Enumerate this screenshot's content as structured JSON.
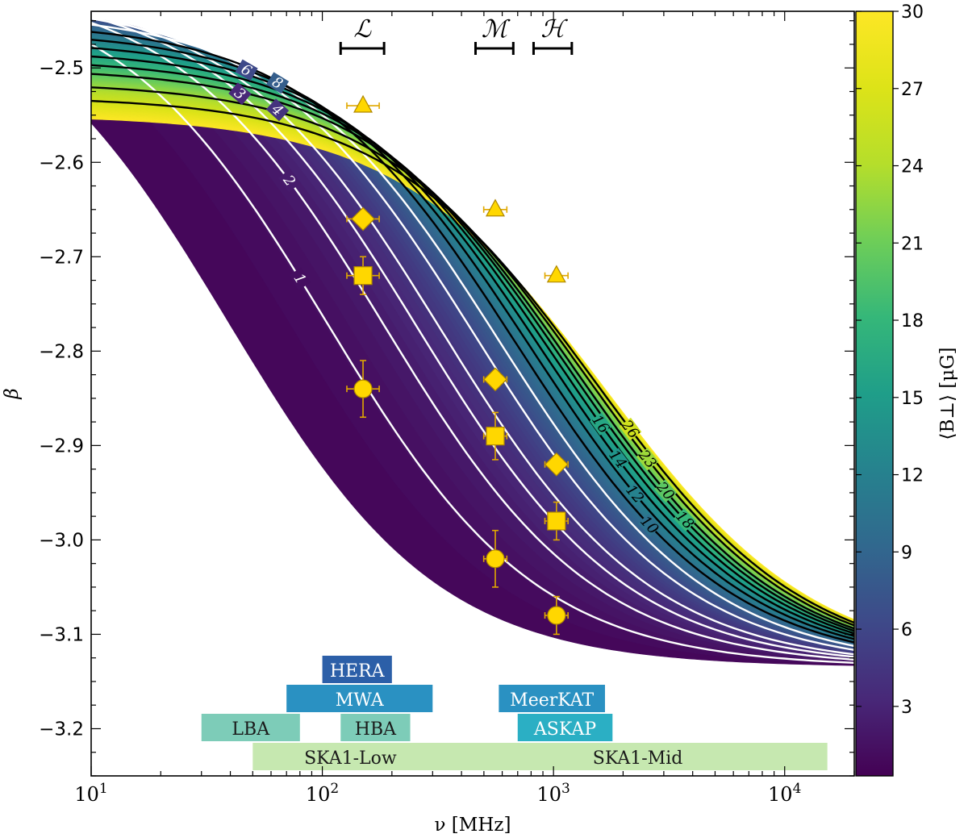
{
  "chart_data": {
    "type": "line",
    "title": "",
    "xlabel": "ν [MHz]",
    "ylabel": "β",
    "xscale": "log",
    "xlim": [
      10,
      20000
    ],
    "ylim": [
      -3.25,
      -2.44
    ],
    "x_ticks": [
      {
        "value": 10,
        "base": "10",
        "exp": "1"
      },
      {
        "value": 100,
        "base": "10",
        "exp": "2"
      },
      {
        "value": 1000,
        "base": "10",
        "exp": "3"
      },
      {
        "value": 10000,
        "base": "10",
        "exp": "4"
      }
    ],
    "y_ticks": [
      "−2.5",
      "−2.6",
      "−2.7",
      "−2.8",
      "−2.9",
      "−3.0",
      "−3.1",
      "−3.2"
    ],
    "y_tick_values": [
      -2.5,
      -2.6,
      -2.7,
      -2.8,
      -2.9,
      -3.0,
      -3.1,
      -3.2
    ],
    "colorbar": {
      "label": "⟨B⊥⟩ [μG]",
      "range": [
        0.3,
        30
      ],
      "colormap": "viridis",
      "ticks": [
        "3",
        "6",
        "9",
        "12",
        "15",
        "18",
        "21",
        "24",
        "27",
        "30"
      ],
      "tick_values": [
        3,
        6,
        9,
        12,
        15,
        18,
        21,
        24,
        27,
        30
      ]
    },
    "band_labels": [
      "ℒ",
      "ℳ",
      "ℋ"
    ],
    "frequency_bands": [
      {
        "symbol": "ℒ",
        "range": [
          120,
          185
        ]
      },
      {
        "symbol": "ℳ",
        "range": [
          460,
          670
        ]
      },
      {
        "symbol": "ℋ",
        "range": [
          820,
          1200
        ]
      }
    ],
    "series": [
      {
        "name": "1",
        "b": 1,
        "color": "#ffffff",
        "label_x": 80
      },
      {
        "name": "2",
        "b": 2,
        "color": "#ffffff",
        "label_x": 72
      },
      {
        "name": "3",
        "b": 3,
        "color": "#ffffff",
        "label_x": 44
      },
      {
        "name": "4",
        "b": 4,
        "color": "#ffffff",
        "label_x": 64
      },
      {
        "name": "6",
        "b": 6,
        "color": "#ffffff",
        "label_x": 47
      },
      {
        "name": "8",
        "b": 8,
        "color": "#ffffff",
        "label_x": 64
      },
      {
        "name": "10",
        "b": 10,
        "color": "#000000",
        "label_x": 2600
      },
      {
        "name": "12",
        "b": 12,
        "color": "#000000",
        "label_x": 2250
      },
      {
        "name": "14",
        "b": 14,
        "color": "#000000",
        "label_x": 1900
      },
      {
        "name": "16",
        "b": 16,
        "color": "#000000",
        "label_x": 1600
      },
      {
        "name": "18",
        "b": 18,
        "color": "#000000",
        "label_x": 3700
      },
      {
        "name": "20",
        "b": 20,
        "color": "#000000",
        "label_x": 3050
      },
      {
        "name": "23",
        "b": 23,
        "color": "#000000",
        "label_x": 2550
      },
      {
        "name": "26",
        "b": 26,
        "color": "#000000",
        "label_x": 2150
      }
    ],
    "points": [
      {
        "x": 150,
        "y": -2.54,
        "xerr": 0.07,
        "yerr": 0,
        "marker": "triangle"
      },
      {
        "x": 150,
        "y": -2.66,
        "xerr": 0.07,
        "yerr": 0,
        "marker": "diamond"
      },
      {
        "x": 150,
        "y": -2.72,
        "xerr": 0.07,
        "yerr": 0.02,
        "marker": "square"
      },
      {
        "x": 150,
        "y": -2.84,
        "xerr": 0.07,
        "yerr": 0.03,
        "marker": "circle"
      },
      {
        "x": 560,
        "y": -2.65,
        "xerr": 0.05,
        "yerr": 0,
        "marker": "triangle"
      },
      {
        "x": 560,
        "y": -2.83,
        "xerr": 0.05,
        "yerr": 0,
        "marker": "diamond"
      },
      {
        "x": 560,
        "y": -2.89,
        "xerr": 0.05,
        "yerr": 0.025,
        "marker": "square"
      },
      {
        "x": 560,
        "y": -3.02,
        "xerr": 0.05,
        "yerr": 0.03,
        "marker": "circle"
      },
      {
        "x": 1030,
        "y": -2.72,
        "xerr": 0.05,
        "yerr": 0,
        "marker": "triangle"
      },
      {
        "x": 1030,
        "y": -2.92,
        "xerr": 0.05,
        "yerr": 0,
        "marker": "diamond"
      },
      {
        "x": 1030,
        "y": -2.98,
        "xerr": 0.05,
        "yerr": 0.02,
        "marker": "square"
      },
      {
        "x": 1030,
        "y": -3.08,
        "xerr": 0.05,
        "yerr": 0.02,
        "marker": "circle"
      }
    ],
    "instruments": [
      {
        "name": "HERA",
        "range": [
          100,
          200
        ],
        "row": 0,
        "color": "#2c5fa8",
        "text_color": "#ffffff"
      },
      {
        "name": "MWA",
        "range": [
          70,
          300
        ],
        "row": 1,
        "color": "#2a91c2",
        "text_color": "#ffffff"
      },
      {
        "name": "MeerKAT",
        "range": [
          580,
          1670
        ],
        "row": 1,
        "color": "#2a91c2",
        "text_color": "#ffffff"
      },
      {
        "name": "LBA",
        "range": [
          30,
          80
        ],
        "row": 2,
        "color": "#7dccb8",
        "text_color": "#1a1a1a"
      },
      {
        "name": "HBA",
        "range": [
          120,
          240
        ],
        "row": 2,
        "color": "#7dccb8",
        "text_color": "#1a1a1a"
      },
      {
        "name": "ASKAP",
        "range": [
          700,
          1800
        ],
        "row": 2,
        "color": "#2bafc4",
        "text_color": "#ffffff"
      },
      {
        "name": "SKA1-Low",
        "range": [
          50,
          350
        ],
        "row": 3,
        "color": "#c6e8b0",
        "text_color": "#1a1a1a"
      },
      {
        "name": "SKA1-Mid",
        "range": [
          350,
          15300
        ],
        "row": 3,
        "color": "#c6e8b0",
        "text_color": "#1a1a1a"
      }
    ],
    "point_color": "#ffd700",
    "grid": false,
    "legend": "none"
  }
}
